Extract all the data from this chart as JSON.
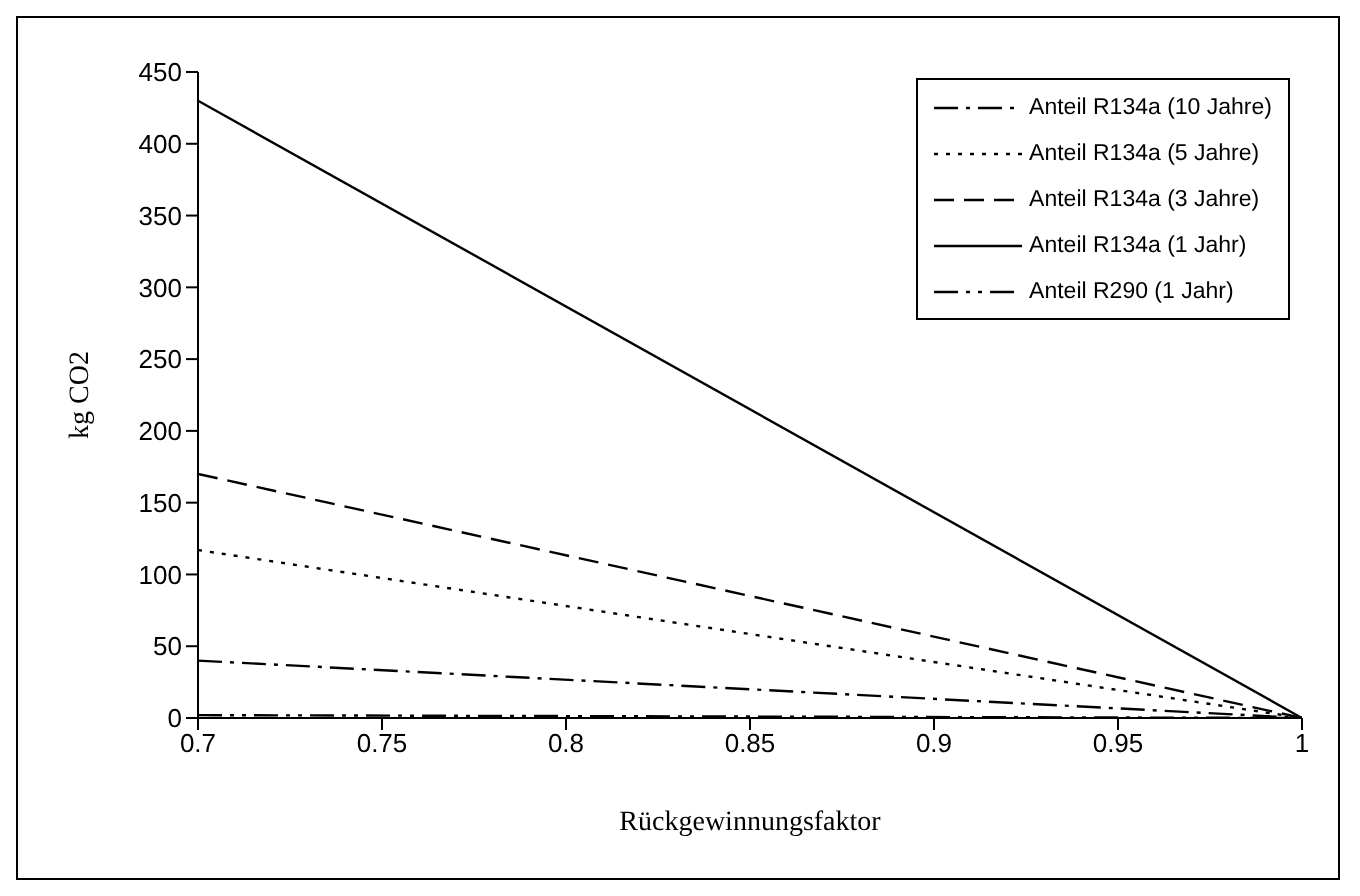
{
  "chart_data": {
    "type": "line",
    "xlabel": "Rückgewinnungsfaktor",
    "ylabel": "kg CO2",
    "x": [
      0.7,
      1
    ],
    "series": [
      {
        "name": "Anteil R134a (10 Jahre)",
        "color": "#000000",
        "values": [
          40,
          0
        ],
        "line_style": "dashdot"
      },
      {
        "name": "Anteil R134a (5 Jahre)",
        "color": "#000000",
        "values": [
          117,
          0
        ],
        "line_style": "dotted"
      },
      {
        "name": "Anteil R134a (3 Jahre)",
        "color": "#000000",
        "values": [
          170,
          0
        ],
        "line_style": "dashed"
      },
      {
        "name": "Anteil R134a (1 Jahr)",
        "color": "#000000",
        "values": [
          430,
          0
        ],
        "line_style": "solid"
      },
      {
        "name": "Anteil R290 (1 Jahr)",
        "color": "#000000",
        "values": [
          2,
          0
        ],
        "line_style": "dashdotdot"
      }
    ],
    "xlim": [
      0.7,
      1
    ],
    "xticks": [
      0.7,
      0.75,
      0.8,
      0.85,
      0.9,
      0.95,
      1
    ],
    "ylim": [
      0,
      450
    ],
    "yticks": [
      0,
      50,
      100,
      150,
      200,
      250,
      300,
      350,
      400,
      450
    ],
    "grid": false,
    "legend": "top right",
    "marker": "none"
  }
}
